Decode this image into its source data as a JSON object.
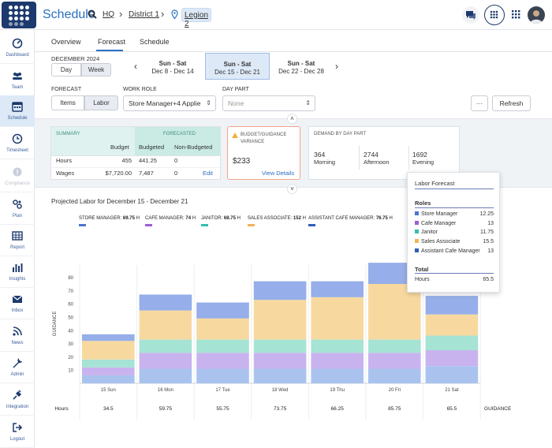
{
  "app": {
    "title": "Schedule"
  },
  "breadcrumb": {
    "hq": "HQ",
    "district": "District 1",
    "legion": "Legion 2"
  },
  "sidebar": {
    "items": [
      {
        "label": "Dashboard"
      },
      {
        "label": "Team"
      },
      {
        "label": "Schedule"
      },
      {
        "label": "Timesheet"
      },
      {
        "label": "Compliance"
      },
      {
        "label": "Plan"
      },
      {
        "label": "Report"
      },
      {
        "label": "Insights"
      },
      {
        "label": "Inbox"
      },
      {
        "label": "News"
      },
      {
        "label": "Admin"
      },
      {
        "label": "Integration"
      },
      {
        "label": "Logout"
      }
    ]
  },
  "tabs": {
    "overview": "Overview",
    "forecast": "Forecast",
    "schedule": "Schedule"
  },
  "period": {
    "month": "DECEMBER 2024",
    "day": "Day",
    "week": "Week"
  },
  "weeks": [
    {
      "title": "Sun - Sat",
      "dates": "Dec 8 - Dec 14"
    },
    {
      "title": "Sun - Sat",
      "dates": "Dec 15 - Dec 21"
    },
    {
      "title": "Sun - Sat",
      "dates": "Dec 22 - Dec 28"
    }
  ],
  "filters": {
    "forecast_label": "FORECAST",
    "items": "Items",
    "labor": "Labor",
    "work_role_label": "WORK ROLE",
    "work_role_value": "Store Manager+4 Applie",
    "day_part_label": "DAY PART",
    "day_part_placeholder": "None",
    "more": "···",
    "refresh": "Refresh"
  },
  "summary": {
    "title": "SUMMARY",
    "forecasted": "FORECASTED",
    "col_budget": "Budget",
    "col_budgeted": "Budgeted",
    "col_non_budgeted": "Non-Budgeted",
    "rows": [
      {
        "label": "Hours",
        "budget": "455",
        "budgeted": "441.25",
        "non_budgeted": "0"
      },
      {
        "label": "Wages",
        "budget": "$7,720.00",
        "budgeted": "7,487",
        "non_budgeted": "0"
      }
    ],
    "edit": "Edit"
  },
  "variance": {
    "title": "BUDGET/GUIDANCE VARIANCE",
    "value": "$233",
    "link": "View Details"
  },
  "demand": {
    "title": "DEMAND BY DAY PART",
    "parts": [
      {
        "value": "364",
        "label": "Morning"
      },
      {
        "value": "2744",
        "label": "Afternoon"
      },
      {
        "value": "1692",
        "label": "Evening"
      }
    ]
  },
  "chart_title": "Projected Labor for December 15 - December 21",
  "legend": [
    {
      "name": "STORE MANAGER:",
      "value": "69.75",
      "unit": "H",
      "color": "#4a74d0"
    },
    {
      "name": "CAFE MANAGER:",
      "value": "74",
      "unit": "H",
      "color": "#9b5fd6"
    },
    {
      "name": "JANITOR:",
      "value": "68.75",
      "unit": "H",
      "color": "#34bfae"
    },
    {
      "name": "SALES ASSOCIATE:",
      "value": "152",
      "unit": "H",
      "color": "#f2b35a"
    },
    {
      "name": "ASSISTANT CAFE MANAGER:",
      "value": "76.75",
      "unit": "H",
      "color": "#2f5fb8"
    }
  ],
  "tooltip": {
    "title": "Labor Forecast",
    "roles_label": "Roles",
    "roles": [
      {
        "name": "Store Manager",
        "value": "12.25",
        "color": "#4a74d0"
      },
      {
        "name": "Cafe Manager",
        "value": "13",
        "color": "#9b5fd6"
      },
      {
        "name": "Janitor",
        "value": "11.75",
        "color": "#34bfae"
      },
      {
        "name": "Sales Associate",
        "value": "15.5",
        "color": "#f2b35a"
      },
      {
        "name": "Assistant Cafe Manager",
        "value": "13",
        "color": "#2f5fb8"
      }
    ],
    "total_label": "Total",
    "hours_label": "Hours",
    "hours_value": "65.5"
  },
  "chart_data": {
    "type": "bar",
    "stacked": true,
    "ylabel": "GUIDANCE",
    "ylim": [
      0,
      90
    ],
    "yticks": [
      10,
      20,
      30,
      40,
      50,
      60,
      70,
      80
    ],
    "categories": [
      "15 Sun",
      "16 Mon",
      "17 Tue",
      "18 Wed",
      "19 Thu",
      "20 Fri",
      "21 Sat"
    ],
    "series": [
      {
        "name": "Store Manager",
        "color": "#a9c3ee",
        "values": [
          6,
          11,
          11,
          11,
          11,
          11,
          13
        ]
      },
      {
        "name": "Cafe Manager",
        "color": "#c9b3ef",
        "values": [
          6,
          12,
          12,
          12,
          12,
          12,
          12
        ]
      },
      {
        "name": "Janitor",
        "color": "#a5e3d4",
        "values": [
          6,
          10,
          10,
          10,
          10,
          10,
          11
        ]
      },
      {
        "name": "Sales Associate",
        "color": "#f7d9a0",
        "values": [
          14,
          22,
          16,
          30,
          32,
          42,
          16
        ]
      },
      {
        "name": "Assistant Cafe Manager",
        "color": "#96aee9",
        "values": [
          5,
          12,
          12,
          14,
          12,
          16,
          14
        ]
      }
    ],
    "row_label": "Hours",
    "row_values": [
      "34.5",
      "59.75",
      "55.75",
      "73.75",
      "66.25",
      "85.75",
      "65.5"
    ],
    "row_end_label": "GUIDANCE"
  }
}
